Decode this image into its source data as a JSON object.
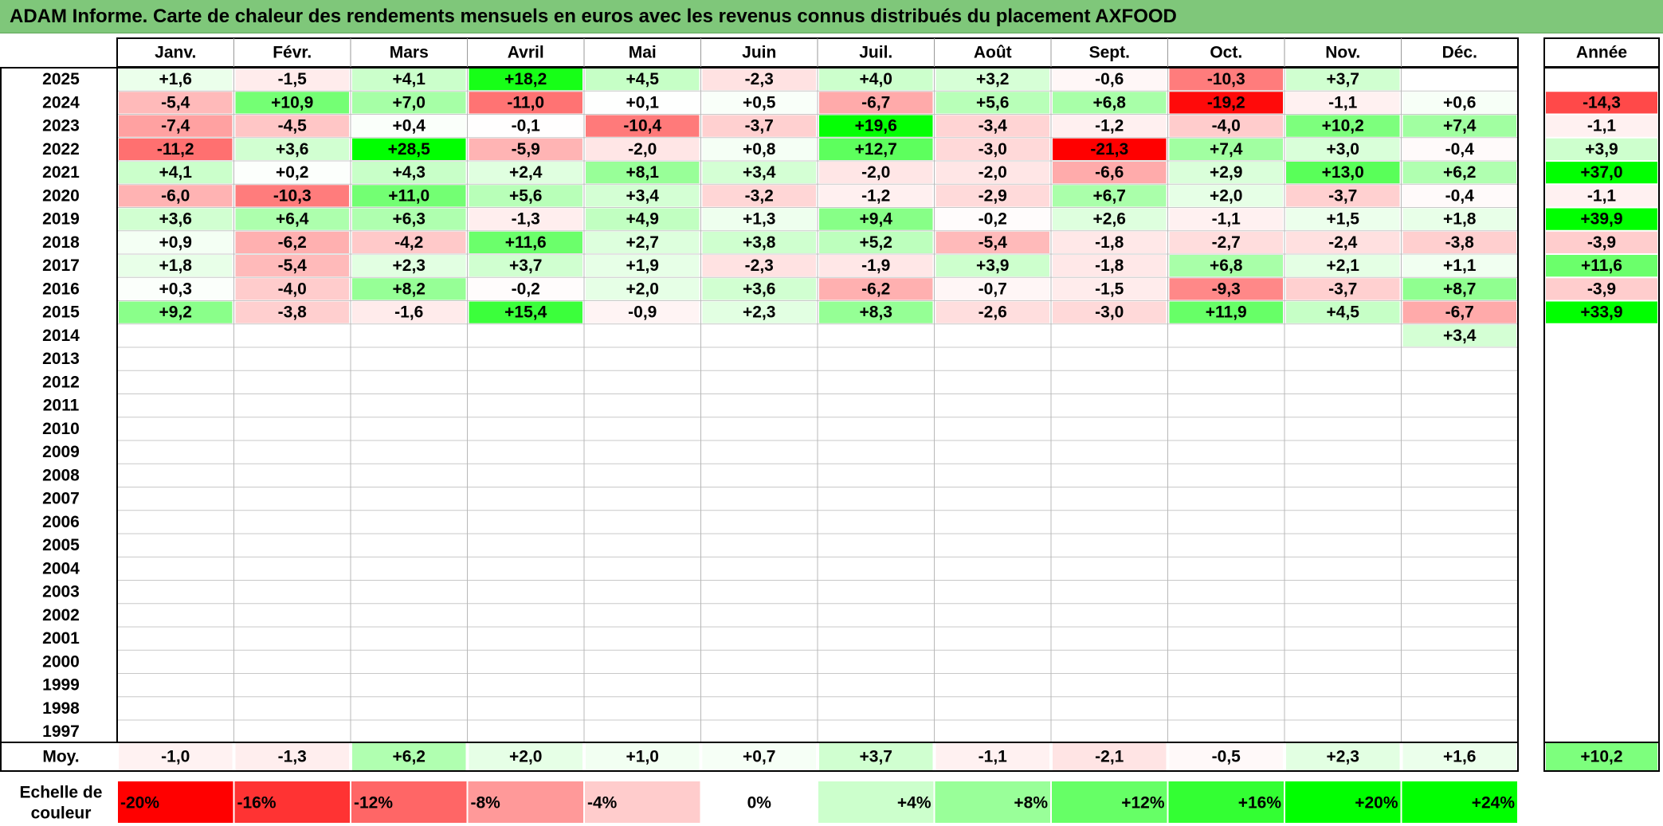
{
  "title": "ADAM Informe. Carte de chaleur des rendements mensuels en euros avec les revenus connus distribués du placement AXFOOD",
  "chart_data": {
    "type": "heatmap",
    "title": "ADAM Informe. Carte de chaleur des rendements mensuels en euros avec les revenus connus distribués du placement AXFOOD",
    "months": [
      "Janv.",
      "Févr.",
      "Mars",
      "Avril",
      "Mai",
      "Juin",
      "Juil.",
      "Août",
      "Sept.",
      "Oct.",
      "Nov.",
      "Déc."
    ],
    "annual_header": "Année",
    "years": [
      "2025",
      "2024",
      "2023",
      "2022",
      "2021",
      "2020",
      "2019",
      "2018",
      "2017",
      "2016",
      "2015",
      "2014",
      "2013",
      "2012",
      "2011",
      "2010",
      "2009",
      "2008",
      "2007",
      "2006",
      "2005",
      "2004",
      "2003",
      "2002",
      "2001",
      "2000",
      "1999",
      "1998",
      "1997"
    ],
    "values": [
      [
        "+1,6",
        "-1,5",
        "+4,1",
        "+18,2",
        "+4,5",
        "-2,3",
        "+4,0",
        "+3,2",
        "-0,6",
        "-10,3",
        "+3,7",
        ""
      ],
      [
        "-5,4",
        "+10,9",
        "+7,0",
        "-11,0",
        "+0,1",
        "+0,5",
        "-6,7",
        "+5,6",
        "+6,8",
        "-19,2",
        "-1,1",
        "+0,6"
      ],
      [
        "-7,4",
        "-4,5",
        "+0,4",
        "-0,1",
        "-10,4",
        "-3,7",
        "+19,6",
        "-3,4",
        "-1,2",
        "-4,0",
        "+10,2",
        "+7,4"
      ],
      [
        "-11,2",
        "+3,6",
        "+28,5",
        "-5,9",
        "-2,0",
        "+0,8",
        "+12,7",
        "-3,0",
        "-21,3",
        "+7,4",
        "+3,0",
        "-0,4"
      ],
      [
        "+4,1",
        "+0,2",
        "+4,3",
        "+2,4",
        "+8,1",
        "+3,4",
        "-2,0",
        "-2,0",
        "-6,6",
        "+2,9",
        "+13,0",
        "+6,2"
      ],
      [
        "-6,0",
        "-10,3",
        "+11,0",
        "+5,6",
        "+3,4",
        "-3,2",
        "-1,2",
        "-2,9",
        "+6,7",
        "+2,0",
        "-3,7",
        "-0,4"
      ],
      [
        "+3,6",
        "+6,4",
        "+6,3",
        "-1,3",
        "+4,9",
        "+1,3",
        "+9,4",
        "-0,2",
        "+2,6",
        "-1,1",
        "+1,5",
        "+1,8"
      ],
      [
        "+0,9",
        "-6,2",
        "-4,2",
        "+11,6",
        "+2,7",
        "+3,8",
        "+5,2",
        "-5,4",
        "-1,8",
        "-2,7",
        "-2,4",
        "-3,8"
      ],
      [
        "+1,8",
        "-5,4",
        "+2,3",
        "+3,7",
        "+1,9",
        "-2,3",
        "-1,9",
        "+3,9",
        "-1,8",
        "+6,8",
        "+2,1",
        "+1,1"
      ],
      [
        "+0,3",
        "-4,0",
        "+8,2",
        "-0,2",
        "+2,0",
        "+3,6",
        "-6,2",
        "-0,7",
        "-1,5",
        "-9,3",
        "-3,7",
        "+8,7"
      ],
      [
        "+9,2",
        "-3,8",
        "-1,6",
        "+15,4",
        "-0,9",
        "+2,3",
        "+8,3",
        "-2,6",
        "-3,0",
        "+11,9",
        "+4,5",
        "-6,7"
      ],
      [
        "",
        "",
        "",
        "",
        "",
        "",
        "",
        "",
        "",
        "",
        "",
        "+3,4"
      ],
      [
        "",
        "",
        "",
        "",
        "",
        "",
        "",
        "",
        "",
        "",
        "",
        ""
      ],
      [
        "",
        "",
        "",
        "",
        "",
        "",
        "",
        "",
        "",
        "",
        "",
        ""
      ],
      [
        "",
        "",
        "",
        "",
        "",
        "",
        "",
        "",
        "",
        "",
        "",
        ""
      ],
      [
        "",
        "",
        "",
        "",
        "",
        "",
        "",
        "",
        "",
        "",
        "",
        ""
      ],
      [
        "",
        "",
        "",
        "",
        "",
        "",
        "",
        "",
        "",
        "",
        "",
        ""
      ],
      [
        "",
        "",
        "",
        "",
        "",
        "",
        "",
        "",
        "",
        "",
        "",
        ""
      ],
      [
        "",
        "",
        "",
        "",
        "",
        "",
        "",
        "",
        "",
        "",
        "",
        ""
      ],
      [
        "",
        "",
        "",
        "",
        "",
        "",
        "",
        "",
        "",
        "",
        "",
        ""
      ],
      [
        "",
        "",
        "",
        "",
        "",
        "",
        "",
        "",
        "",
        "",
        "",
        ""
      ],
      [
        "",
        "",
        "",
        "",
        "",
        "",
        "",
        "",
        "",
        "",
        "",
        ""
      ],
      [
        "",
        "",
        "",
        "",
        "",
        "",
        "",
        "",
        "",
        "",
        "",
        ""
      ],
      [
        "",
        "",
        "",
        "",
        "",
        "",
        "",
        "",
        "",
        "",
        "",
        ""
      ],
      [
        "",
        "",
        "",
        "",
        "",
        "",
        "",
        "",
        "",
        "",
        "",
        ""
      ],
      [
        "",
        "",
        "",
        "",
        "",
        "",
        "",
        "",
        "",
        "",
        "",
        ""
      ],
      [
        "",
        "",
        "",
        "",
        "",
        "",
        "",
        "",
        "",
        "",
        "",
        ""
      ],
      [
        "",
        "",
        "",
        "",
        "",
        "",
        "",
        "",
        "",
        "",
        "",
        ""
      ],
      [
        "",
        "",
        "",
        "",
        "",
        "",
        "",
        "",
        "",
        "",
        "",
        ""
      ]
    ],
    "annual": [
      "",
      "-14,3",
      "-1,1",
      "+3,9",
      "+37,0",
      "-1,1",
      "+39,9",
      "-3,9",
      "+11,6",
      "-3,9",
      "+33,9",
      "",
      "",
      "",
      "",
      "",
      "",
      "",
      "",
      "",
      "",
      "",
      "",
      "",
      "",
      "",
      "",
      "",
      ""
    ],
    "average_label": "Moy.",
    "averages": [
      "-1,0",
      "-1,3",
      "+6,2",
      "+2,0",
      "+1,0",
      "+0,7",
      "+3,7",
      "-1,1",
      "-2,1",
      "-0,5",
      "+2,3",
      "+1,6"
    ],
    "average_annual": "+10,2",
    "scale_label": [
      "Echelle de",
      "couleur"
    ],
    "scale": [
      {
        "label": "-20%",
        "value": -20,
        "color": "#ff0000"
      },
      {
        "label": "-16%",
        "value": -16,
        "color": "#ff3333"
      },
      {
        "label": "-12%",
        "value": -12,
        "color": "#ff6666"
      },
      {
        "label": "-8%",
        "value": -8,
        "color": "#ff9999"
      },
      {
        "label": "-4%",
        "value": -4,
        "color": "#ffcccc"
      },
      {
        "label": "0%",
        "value": 0,
        "color": "#ffffff"
      },
      {
        "label": "+4%",
        "value": 4,
        "color": "#ccffcc"
      },
      {
        "label": "+8%",
        "value": 8,
        "color": "#99ff99"
      },
      {
        "label": "+12%",
        "value": 12,
        "color": "#66ff66"
      },
      {
        "label": "+16%",
        "value": 16,
        "color": "#33ff33"
      },
      {
        "label": "+20%",
        "value": 20,
        "color": "#00ff00"
      },
      {
        "label": "+24%",
        "value": 24,
        "color": "#00ff00"
      }
    ],
    "color_negative_max": "#ff0000",
    "color_positive_max": "#00e000",
    "color_neutral": "#ffffff",
    "grid": true
  }
}
